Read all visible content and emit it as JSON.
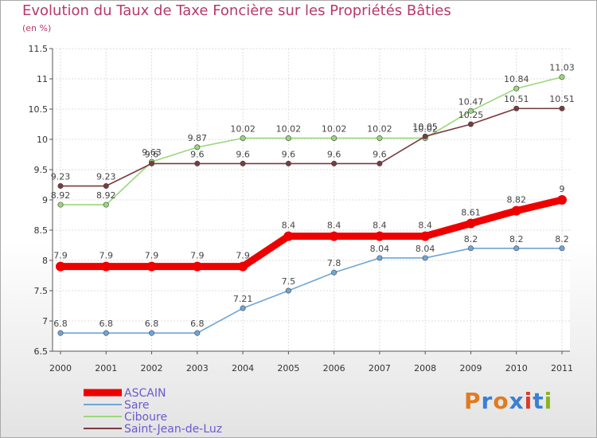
{
  "title": "Evolution du Taux de Taxe Foncière sur les Propriétés Bâties",
  "subtitle": "(en %)",
  "logo": {
    "text": "Proxiti",
    "colors": [
      "#e07b20",
      "#3a7fd5",
      "#e07b20",
      "#3a7fd5",
      "#d93b2b",
      "#3a7fd5",
      "#8ab520"
    ]
  },
  "chart_data": {
    "type": "line",
    "title": "Evolution du Taux de Taxe Foncière sur les Propriétés Bâties",
    "ylabel": "(en %)",
    "xlabel": "",
    "categories": [
      "2000",
      "2001",
      "2002",
      "2003",
      "2004",
      "2005",
      "2006",
      "2007",
      "2008",
      "2009",
      "2010",
      "2011"
    ],
    "ylim": [
      6.5,
      11.5
    ],
    "yticks": [
      "6.5",
      "7",
      "7.5",
      "8",
      "8.5",
      "9",
      "9.5",
      "10",
      "10.5",
      "11",
      "11.5"
    ],
    "grid": true,
    "legend": "bottom-left",
    "series": [
      {
        "name": "ASCAIN",
        "color": "#ee0000",
        "emphasis": true,
        "values": [
          7.9,
          7.9,
          7.9,
          7.9,
          7.9,
          8.4,
          8.4,
          8.4,
          8.4,
          8.61,
          8.82,
          9
        ],
        "labels": [
          "7.9",
          "7.9",
          "7.9",
          "7.9",
          "7.9",
          "8.4",
          "8.4",
          "8.4",
          "8.4",
          "8.61",
          "8.82",
          "9"
        ]
      },
      {
        "name": "Sare",
        "color": "#6fa5d6",
        "values": [
          6.8,
          6.8,
          6.8,
          6.8,
          7.21,
          7.5,
          7.8,
          8.04,
          8.04,
          8.2,
          8.2,
          8.2
        ],
        "labels": [
          "6.8",
          "6.8",
          "6.8",
          "6.8",
          "7.21",
          "7.5",
          "7.8",
          "8.04",
          "8.04",
          "8.2",
          "8.2",
          "8.2"
        ]
      },
      {
        "name": "Ciboure",
        "color": "#9ad77c",
        "values": [
          8.92,
          8.92,
          9.63,
          9.87,
          10.02,
          10.02,
          10.02,
          10.02,
          10.02,
          10.47,
          10.84,
          11.03
        ],
        "labels": [
          "8.92",
          "8.92",
          "9.63",
          "9.87",
          "10.02",
          "10.02",
          "10.02",
          "10.02",
          "10.02",
          "10.47",
          "10.84",
          "11.03"
        ]
      },
      {
        "name": "Saint-Jean-de-Luz",
        "color": "#7a3b3e",
        "values": [
          9.23,
          9.23,
          9.6,
          9.6,
          9.6,
          9.6,
          9.6,
          9.6,
          10.05,
          10.25,
          10.51,
          10.51
        ],
        "labels": [
          "9.23",
          "9.23",
          "9.6",
          "9.6",
          "9.6",
          "9.6",
          "9.6",
          "9.6",
          "10.05",
          "10.25",
          "10.51",
          "10.51"
        ]
      }
    ]
  }
}
